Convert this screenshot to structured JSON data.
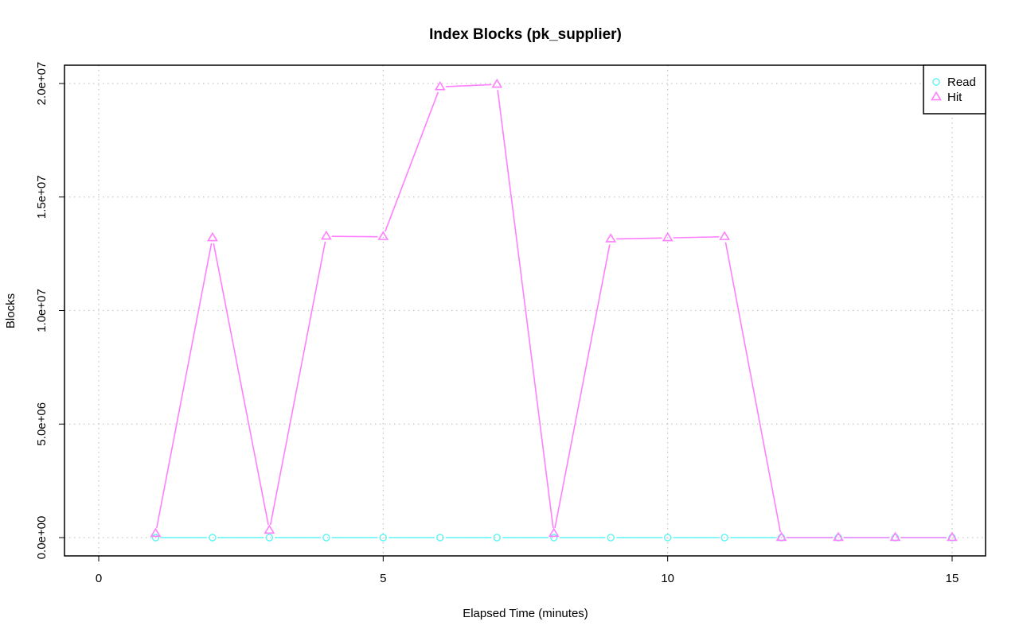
{
  "chart_data": {
    "type": "line",
    "title": "Index Blocks (pk_supplier)",
    "xlabel": "Elapsed Time (minutes)",
    "ylabel": "Blocks",
    "xlim": [
      0,
      15
    ],
    "ylim": [
      0,
      20000000
    ],
    "x_ticks": [
      0,
      5,
      10,
      15
    ],
    "x_tick_labels": [
      "0",
      "5",
      "10",
      "15"
    ],
    "y_ticks": [
      0,
      5000000,
      10000000,
      15000000,
      20000000
    ],
    "y_tick_labels": [
      "0.0e+00",
      "5.0e+06",
      "1.0e+07",
      "1.5e+07",
      "2.0e+07"
    ],
    "grid": true,
    "legend_position": "top-right",
    "x": [
      1,
      2,
      3,
      4,
      5,
      6,
      7,
      8,
      9,
      10,
      11,
      12,
      13,
      14,
      15
    ],
    "series": [
      {
        "name": "Read",
        "color": "#5ff5f5",
        "marker": "circle",
        "values": [
          0,
          0,
          0,
          0,
          0,
          0,
          0,
          0,
          0,
          0,
          0,
          0,
          0,
          0,
          0
        ]
      },
      {
        "name": "Hit",
        "color": "#ff7fff",
        "marker": "triangle",
        "values": [
          180000,
          13200000,
          320000,
          13270000,
          13250000,
          19850000,
          19960000,
          180000,
          13150000,
          13200000,
          13250000,
          0,
          0,
          0,
          0
        ]
      }
    ]
  }
}
